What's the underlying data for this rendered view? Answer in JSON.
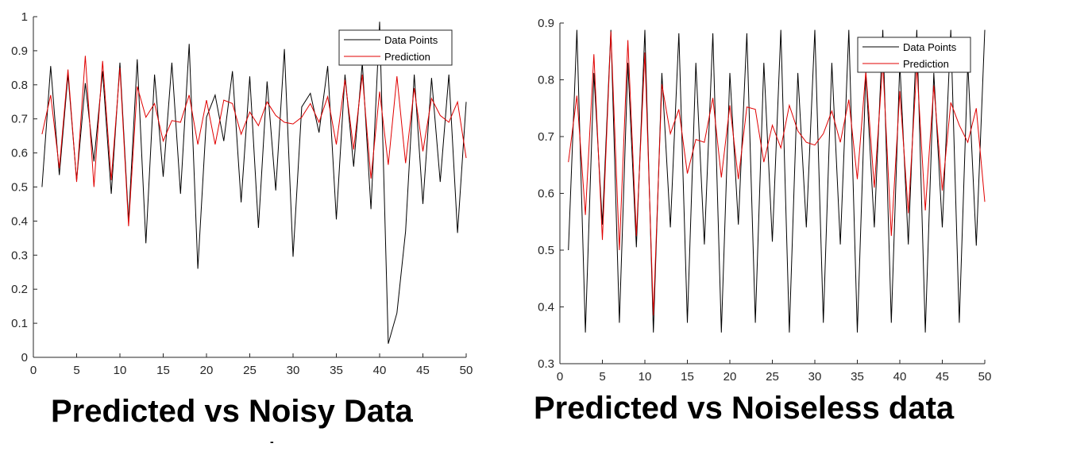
{
  "chart_data": [
    {
      "type": "line",
      "title": "Predicted vs Noisy Data",
      "xlim": [
        0,
        50
      ],
      "ylim": [
        0,
        1
      ],
      "xticks": [
        "0",
        "5",
        "10",
        "15",
        "20",
        "25",
        "30",
        "35",
        "40",
        "45",
        "50"
      ],
      "yticks": [
        "0",
        "0.1",
        "0.2",
        "0.3",
        "0.4",
        "0.5",
        "0.6",
        "0.7",
        "0.8",
        "0.9",
        "1"
      ],
      "grid": false,
      "legend_position": "top-right",
      "x": [
        1,
        2,
        3,
        4,
        5,
        6,
        7,
        8,
        9,
        10,
        11,
        12,
        13,
        14,
        15,
        16,
        17,
        18,
        19,
        20,
        21,
        22,
        23,
        24,
        25,
        26,
        27,
        28,
        29,
        30,
        31,
        32,
        33,
        34,
        35,
        36,
        37,
        38,
        39,
        40,
        41,
        42,
        43,
        44,
        45,
        46,
        47,
        48,
        49,
        50
      ],
      "series": [
        {
          "name": "Data Points",
          "color": "#000000",
          "values": [
            0.5,
            0.855,
            0.535,
            0.83,
            0.52,
            0.805,
            0.575,
            0.84,
            0.48,
            0.865,
            0.4,
            0.875,
            0.335,
            0.83,
            0.53,
            0.865,
            0.48,
            0.92,
            0.26,
            0.705,
            0.77,
            0.635,
            0.84,
            0.455,
            0.825,
            0.38,
            0.81,
            0.49,
            0.905,
            0.295,
            0.735,
            0.775,
            0.66,
            0.855,
            0.405,
            0.83,
            0.56,
            0.865,
            0.435,
            0.985,
            0.04,
            0.13,
            0.37,
            0.83,
            0.45,
            0.82,
            0.515,
            0.83,
            0.365,
            0.75
          ]
        },
        {
          "name": "Prediction",
          "color": "#e00000",
          "values": [
            0.655,
            0.77,
            0.555,
            0.845,
            0.515,
            0.885,
            0.5,
            0.87,
            0.52,
            0.85,
            0.385,
            0.795,
            0.705,
            0.745,
            0.635,
            0.695,
            0.69,
            0.77,
            0.625,
            0.755,
            0.625,
            0.755,
            0.745,
            0.655,
            0.72,
            0.68,
            0.75,
            0.71,
            0.69,
            0.685,
            0.705,
            0.745,
            0.69,
            0.765,
            0.625,
            0.815,
            0.61,
            0.83,
            0.525,
            0.78,
            0.565,
            0.825,
            0.57,
            0.79,
            0.605,
            0.76,
            0.71,
            0.69,
            0.75,
            0.585
          ]
        }
      ]
    },
    {
      "type": "line",
      "title": "Predicted vs Noiseless data",
      "xlim": [
        0,
        50
      ],
      "ylim": [
        0.3,
        0.9
      ],
      "xticks": [
        "0",
        "5",
        "10",
        "15",
        "20",
        "25",
        "30",
        "35",
        "40",
        "45",
        "50"
      ],
      "yticks": [
        "0.3",
        "0.4",
        "0.5",
        "0.6",
        "0.7",
        "0.8",
        "0.9"
      ],
      "grid": false,
      "legend_position": "top-right",
      "x": [
        1,
        2,
        3,
        4,
        5,
        6,
        7,
        8,
        9,
        10,
        11,
        12,
        13,
        14,
        15,
        16,
        17,
        18,
        19,
        20,
        21,
        22,
        23,
        24,
        25,
        26,
        27,
        28,
        29,
        30,
        31,
        32,
        33,
        34,
        35,
        36,
        37,
        38,
        39,
        40,
        41,
        42,
        43,
        44,
        45,
        46,
        47,
        48,
        49,
        50
      ],
      "series": [
        {
          "name": "Data Points",
          "color": "#000000",
          "values": [
            0.5,
            0.888,
            0.355,
            0.812,
            0.545,
            0.888,
            0.372,
            0.83,
            0.505,
            0.888,
            0.355,
            0.812,
            0.54,
            0.882,
            0.372,
            0.83,
            0.51,
            0.882,
            0.355,
            0.812,
            0.545,
            0.882,
            0.372,
            0.83,
            0.515,
            0.888,
            0.355,
            0.812,
            0.54,
            0.888,
            0.372,
            0.83,
            0.51,
            0.888,
            0.355,
            0.812,
            0.54,
            0.888,
            0.372,
            0.83,
            0.51,
            0.888,
            0.355,
            0.812,
            0.54,
            0.888,
            0.372,
            0.83,
            0.508,
            0.888
          ]
        },
        {
          "name": "Prediction",
          "color": "#e00000",
          "values": [
            0.655,
            0.772,
            0.562,
            0.845,
            0.518,
            0.885,
            0.5,
            0.87,
            0.525,
            0.848,
            0.385,
            0.792,
            0.705,
            0.748,
            0.635,
            0.695,
            0.69,
            0.768,
            0.628,
            0.755,
            0.625,
            0.752,
            0.748,
            0.655,
            0.72,
            0.68,
            0.755,
            0.71,
            0.69,
            0.685,
            0.705,
            0.745,
            0.69,
            0.765,
            0.625,
            0.815,
            0.61,
            0.83,
            0.525,
            0.78,
            0.565,
            0.825,
            0.57,
            0.79,
            0.605,
            0.76,
            0.72,
            0.69,
            0.75,
            0.585
          ]
        }
      ]
    }
  ],
  "captions": {
    "left": "Predicted vs Noisy Data",
    "right": "Predicted vs Noiseless data",
    "mark": "-"
  }
}
